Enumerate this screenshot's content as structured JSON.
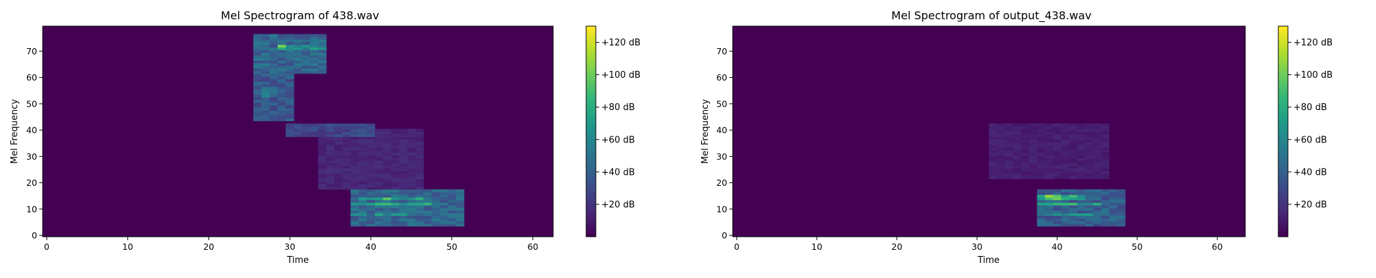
{
  "chart_data": [
    {
      "type": "heatmap",
      "title": "Mel Spectrogram of 438.wav",
      "xlabel": "Time",
      "ylabel": "Mel Frequency",
      "xlim": [
        -0.5,
        62.5
      ],
      "ylim": [
        -0.5,
        79.5
      ],
      "xticks": [
        0,
        10,
        20,
        30,
        40,
        50,
        60
      ],
      "yticks": [
        0,
        10,
        20,
        30,
        40,
        50,
        60,
        70
      ],
      "colorbar": {
        "label_format": "+%d dB",
        "ticks": [
          20,
          40,
          60,
          80,
          100,
          120
        ],
        "tick_labels": [
          "+20 dB",
          "+40 dB",
          "+60 dB",
          "+80 dB",
          "+100 dB",
          "+120 dB"
        ],
        "range": [
          0,
          130
        ]
      },
      "colormap": "viridis",
      "regions": [
        {
          "name": "upper-formant-block",
          "t": [
            26,
            34
          ],
          "m": [
            62,
            76
          ],
          "level": 55
        },
        {
          "name": "upper-formant-peak",
          "t": [
            29,
            29
          ],
          "m": [
            72,
            72
          ],
          "level": 125
        },
        {
          "name": "upper-harmonic-line",
          "t": [
            29,
            34
          ],
          "m": [
            71,
            72
          ],
          "level": 85
        },
        {
          "name": "mid-block",
          "t": [
            26,
            30
          ],
          "m": [
            44,
            62
          ],
          "level": 45
        },
        {
          "name": "mid-spot",
          "t": [
            27,
            29
          ],
          "m": [
            53,
            56
          ],
          "level": 60
        },
        {
          "name": "descending-band",
          "t": [
            30,
            40
          ],
          "m": [
            38,
            42
          ],
          "level": 35
        },
        {
          "name": "scatter-trail",
          "t": [
            34,
            46
          ],
          "m": [
            18,
            40
          ],
          "level": 18
        },
        {
          "name": "lower-block",
          "t": [
            38,
            51
          ],
          "m": [
            4,
            17
          ],
          "level": 55
        },
        {
          "name": "lower-harmonic-line-1",
          "t": [
            38,
            47
          ],
          "m": [
            12,
            12
          ],
          "level": 95
        },
        {
          "name": "lower-harmonic-line-2",
          "t": [
            39,
            46
          ],
          "m": [
            14,
            14
          ],
          "level": 100
        },
        {
          "name": "lower-peak",
          "t": [
            41,
            42
          ],
          "m": [
            14,
            14
          ],
          "level": 122
        },
        {
          "name": "lower-harmonic-line-3",
          "t": [
            38,
            45
          ],
          "m": [
            8,
            8
          ],
          "level": 75
        }
      ]
    },
    {
      "type": "heatmap",
      "title": "Mel Spectrogram of output_438.wav",
      "xlabel": "Time",
      "ylabel": "Mel Frequency",
      "xlim": [
        -0.5,
        63.5
      ],
      "ylim": [
        -0.5,
        79.5
      ],
      "xticks": [
        0,
        10,
        20,
        30,
        40,
        50,
        60
      ],
      "yticks": [
        0,
        10,
        20,
        30,
        40,
        50,
        60,
        70
      ],
      "colorbar": {
        "label_format": "+%d dB",
        "ticks": [
          20,
          40,
          60,
          80,
          100,
          120
        ],
        "tick_labels": [
          "+20 dB",
          "+40 dB",
          "+60 dB",
          "+80 dB",
          "+100 dB",
          "+120 dB"
        ],
        "range": [
          0,
          130
        ]
      },
      "colormap": "viridis",
      "regions": [
        {
          "name": "faint-trail",
          "t": [
            32,
            46
          ],
          "m": [
            22,
            42
          ],
          "level": 14
        },
        {
          "name": "lower-block",
          "t": [
            38,
            48
          ],
          "m": [
            4,
            17
          ],
          "level": 50
        },
        {
          "name": "lower-harmonic-line-1",
          "t": [
            38,
            45
          ],
          "m": [
            12,
            12
          ],
          "level": 95
        },
        {
          "name": "lower-harmonic-line-2",
          "t": [
            38,
            43
          ],
          "m": [
            14,
            15
          ],
          "level": 110
        },
        {
          "name": "lower-peak",
          "t": [
            39,
            40
          ],
          "m": [
            15,
            15
          ],
          "level": 125
        },
        {
          "name": "lower-harmonic-line-3",
          "t": [
            38,
            44
          ],
          "m": [
            8,
            8
          ],
          "level": 75
        }
      ]
    }
  ]
}
